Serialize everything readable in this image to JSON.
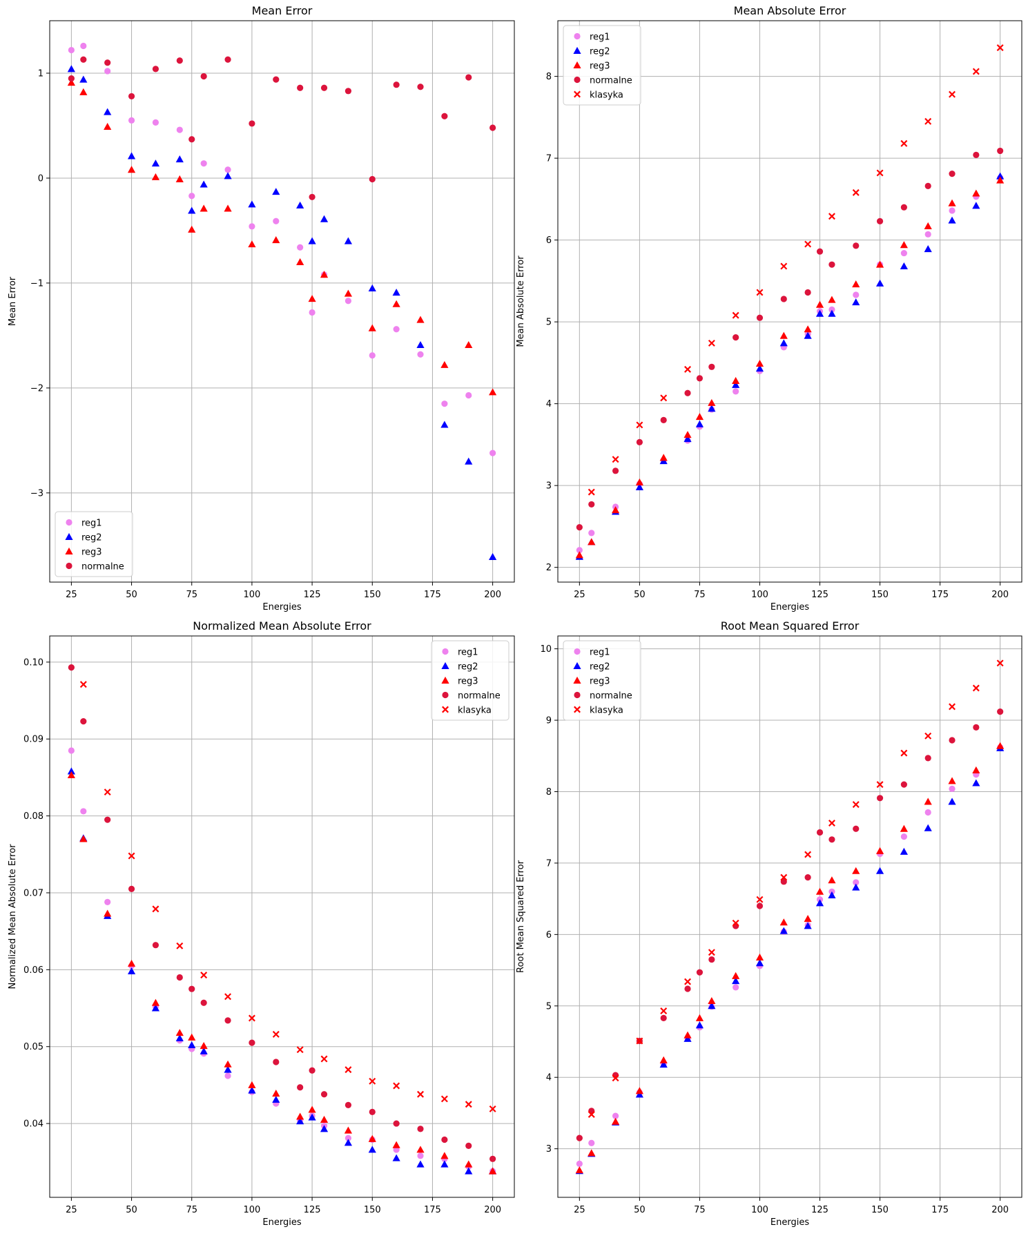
{
  "figure": {
    "title": ""
  },
  "colors": {
    "reg1": "#ee82ee",
    "reg2": "#0000ff",
    "reg3": "#ff0000",
    "normalne": "#dc143c",
    "klasyka": "#ff0000",
    "grid": "#b0b0b0"
  },
  "chart_data": [
    {
      "type": "scatter",
      "title": "Mean Error",
      "xlabel": "Energies",
      "ylabel": "Mean Error",
      "xlim": [
        16,
        209
      ],
      "ylim": [
        -3.85,
        1.5
      ],
      "xticks": [
        25,
        50,
        75,
        100,
        125,
        150,
        175,
        200
      ],
      "yticks": [
        -3,
        -2,
        -1,
        0,
        1
      ],
      "yticklabels": [
        "−3",
        "−2",
        "−1",
        "0",
        "1"
      ],
      "grid": true,
      "legend": "lower-left",
      "x": [
        25,
        30,
        40,
        50,
        60,
        70,
        75,
        80,
        90,
        100,
        110,
        120,
        125,
        130,
        140,
        150,
        160,
        170,
        180,
        190,
        200
      ],
      "series": [
        {
          "name": "reg1",
          "marker": "circle",
          "color": "#ee82ee",
          "values": [
            1.22,
            1.26,
            1.02,
            0.55,
            0.53,
            0.46,
            -0.17,
            0.14,
            0.08,
            -0.46,
            -0.41,
            -0.66,
            -1.28,
            -0.92,
            -1.17,
            -1.69,
            -1.44,
            -1.68,
            -2.15,
            -2.07,
            -2.62
          ]
        },
        {
          "name": "reg2",
          "marker": "triangle",
          "color": "#0000ff",
          "values": [
            1.04,
            0.94,
            0.63,
            0.21,
            0.14,
            0.18,
            -0.31,
            -0.06,
            0.02,
            -0.25,
            -0.13,
            -0.26,
            -0.6,
            -0.39,
            -0.6,
            -1.05,
            -1.09,
            -1.59,
            -2.35,
            -2.7,
            -3.61
          ]
        },
        {
          "name": "reg3",
          "marker": "triangle",
          "color": "#ff0000",
          "values": [
            0.91,
            0.82,
            0.49,
            0.08,
            0.01,
            -0.01,
            -0.49,
            -0.29,
            -0.29,
            -0.63,
            -0.59,
            -0.8,
            -1.15,
            -0.92,
            -1.1,
            -1.43,
            -1.2,
            -1.35,
            -1.78,
            -1.59,
            -2.04
          ]
        },
        {
          "name": "normalne",
          "marker": "circle",
          "color": "#dc143c",
          "values": [
            0.95,
            1.13,
            1.1,
            0.78,
            1.04,
            1.12,
            0.37,
            0.97,
            1.13,
            0.52,
            0.94,
            0.86,
            -0.18,
            0.86,
            0.83,
            -0.01,
            0.89,
            0.87,
            0.59,
            0.96,
            0.48
          ]
        }
      ]
    },
    {
      "type": "scatter",
      "title": "Mean Absolute Error",
      "xlabel": "Energies",
      "ylabel": "Mean Absolute Error",
      "xlim": [
        16,
        209
      ],
      "ylim": [
        1.82,
        8.68
      ],
      "xticks": [
        25,
        50,
        75,
        100,
        125,
        150,
        175,
        200
      ],
      "yticks": [
        2,
        3,
        4,
        5,
        6,
        7,
        8
      ],
      "yticklabels": [
        "2",
        "3",
        "4",
        "5",
        "6",
        "7",
        "8"
      ],
      "grid": true,
      "legend": "top-left",
      "x": [
        25,
        30,
        40,
        50,
        60,
        70,
        75,
        80,
        90,
        100,
        110,
        120,
        125,
        130,
        140,
        150,
        160,
        170,
        180,
        190,
        200
      ],
      "series": [
        {
          "name": "reg1",
          "marker": "circle",
          "color": "#ee82ee",
          "values": [
            2.21,
            2.42,
            2.74,
            3.02,
            3.31,
            3.55,
            3.72,
            3.93,
            4.15,
            4.4,
            4.69,
            4.85,
            5.13,
            5.15,
            5.33,
            5.7,
            5.84,
            6.07,
            6.36,
            6.53,
            6.76
          ]
        },
        {
          "name": "reg2",
          "marker": "triangle",
          "color": "#0000ff",
          "values": [
            2.13,
            2.31,
            2.68,
            2.98,
            3.3,
            3.57,
            3.75,
            3.94,
            4.23,
            4.43,
            4.74,
            4.83,
            5.1,
            5.1,
            5.24,
            5.47,
            5.68,
            5.89,
            6.24,
            6.42,
            6.78
          ]
        },
        {
          "name": "reg3",
          "marker": "triangle",
          "color": "#ff0000",
          "values": [
            2.15,
            2.31,
            2.7,
            3.04,
            3.34,
            3.62,
            3.84,
            4.01,
            4.28,
            4.49,
            4.83,
            4.91,
            5.21,
            5.27,
            5.46,
            5.7,
            5.94,
            6.17,
            6.45,
            6.57,
            6.73
          ]
        },
        {
          "name": "normalne",
          "marker": "circle",
          "color": "#dc143c",
          "values": [
            2.49,
            2.77,
            3.18,
            3.53,
            3.8,
            4.13,
            4.31,
            4.45,
            4.81,
            5.05,
            5.28,
            5.36,
            5.86,
            5.7,
            5.93,
            6.23,
            6.4,
            6.66,
            6.81,
            7.04,
            7.09
          ]
        },
        {
          "name": "klasyka",
          "marker": "x",
          "color": "#ff0000",
          "values": [
            null,
            2.92,
            3.32,
            3.74,
            4.07,
            4.42,
            null,
            4.74,
            5.08,
            5.36,
            5.68,
            5.95,
            null,
            6.29,
            6.58,
            6.82,
            7.18,
            7.45,
            7.78,
            8.06,
            8.35
          ]
        }
      ]
    },
    {
      "type": "scatter",
      "title": "Normalized Mean Absolute Error",
      "xlabel": "Energies",
      "ylabel": "Normalized Mean Absolute Error",
      "xlim": [
        16,
        209
      ],
      "ylim": [
        0.0304,
        0.1034
      ],
      "xticks": [
        25,
        50,
        75,
        100,
        125,
        150,
        175,
        200
      ],
      "yticks": [
        0.04,
        0.05,
        0.06,
        0.07,
        0.08,
        0.09,
        0.1
      ],
      "yticklabels": [
        "0.04",
        "0.05",
        "0.06",
        "0.07",
        "0.08",
        "0.09",
        "0.10"
      ],
      "grid": true,
      "legend": "top-right",
      "x": [
        25,
        30,
        40,
        50,
        60,
        70,
        75,
        80,
        90,
        100,
        110,
        120,
        125,
        130,
        140,
        150,
        160,
        170,
        180,
        190,
        200
      ],
      "series": [
        {
          "name": "reg1",
          "marker": "circle",
          "color": "#ee82ee",
          "values": [
            0.0885,
            0.0806,
            0.0688,
            0.0605,
            0.0552,
            0.0508,
            0.0497,
            0.0491,
            0.0462,
            0.0441,
            0.0426,
            0.0404,
            0.041,
            0.0397,
            0.0381,
            0.0379,
            0.0366,
            0.0358,
            0.0354,
            0.0344,
            0.0338
          ]
        },
        {
          "name": "reg2",
          "marker": "triangle",
          "color": "#0000ff",
          "values": [
            0.0858,
            0.0771,
            0.067,
            0.0598,
            0.055,
            0.0511,
            0.0502,
            0.0494,
            0.047,
            0.0443,
            0.0431,
            0.0403,
            0.0408,
            0.0393,
            0.0375,
            0.0366,
            0.0355,
            0.0347,
            0.0347,
            0.0338,
            0.0338
          ]
        },
        {
          "name": "reg3",
          "marker": "triangle",
          "color": "#ff0000",
          "values": [
            0.0853,
            0.077,
            0.0673,
            0.0608,
            0.0557,
            0.0518,
            0.0512,
            0.0501,
            0.0477,
            0.045,
            0.0439,
            0.0409,
            0.0418,
            0.0405,
            0.0391,
            0.038,
            0.0372,
            0.0366,
            0.0358,
            0.0347,
            0.0338
          ]
        },
        {
          "name": "normalne",
          "marker": "circle",
          "color": "#dc143c",
          "values": [
            0.0993,
            0.0923,
            0.0795,
            0.0705,
            0.0632,
            0.059,
            0.0575,
            0.0557,
            0.0534,
            0.0505,
            0.048,
            0.0447,
            0.0469,
            0.0438,
            0.0424,
            0.0415,
            0.04,
            0.0393,
            0.0379,
            0.0371,
            0.0354
          ]
        },
        {
          "name": "klasyka",
          "marker": "x",
          "color": "#ff0000",
          "values": [
            null,
            0.0971,
            0.0831,
            0.0748,
            0.0679,
            0.0631,
            null,
            0.0593,
            0.0565,
            0.0537,
            0.0516,
            0.0496,
            null,
            0.0484,
            0.047,
            0.0455,
            0.0449,
            0.0438,
            0.0432,
            0.0425,
            0.0419
          ]
        }
      ]
    },
    {
      "type": "scatter",
      "title": "Root Mean Squared Error",
      "xlabel": "Energies",
      "ylabel": "Root Mean Squared Error",
      "xlim": [
        16,
        209
      ],
      "ylim": [
        2.32,
        10.18
      ],
      "xticks": [
        25,
        50,
        75,
        100,
        125,
        150,
        175,
        200
      ],
      "yticks": [
        3,
        4,
        5,
        6,
        7,
        8,
        9,
        10
      ],
      "yticklabels": [
        "3",
        "4",
        "5",
        "6",
        "7",
        "8",
        "9",
        "10"
      ],
      "grid": true,
      "legend": "top-left",
      "x": [
        25,
        30,
        40,
        50,
        60,
        70,
        75,
        80,
        90,
        100,
        110,
        120,
        125,
        130,
        140,
        150,
        160,
        170,
        180,
        190,
        200
      ],
      "series": [
        {
          "name": "reg1",
          "marker": "circle",
          "color": "#ee82ee",
          "values": [
            2.79,
            3.08,
            3.46,
            3.79,
            4.19,
            4.55,
            4.7,
            4.99,
            5.26,
            5.56,
            6.04,
            6.13,
            6.49,
            6.6,
            6.73,
            7.13,
            7.37,
            7.71,
            8.04,
            8.24,
            8.62
          ]
        },
        {
          "name": "reg2",
          "marker": "triangle",
          "color": "#0000ff",
          "values": [
            2.69,
            2.93,
            3.37,
            3.76,
            4.18,
            4.54,
            4.73,
            5.0,
            5.35,
            5.6,
            6.05,
            6.12,
            6.44,
            6.55,
            6.66,
            6.89,
            7.16,
            7.49,
            7.86,
            8.12,
            8.61
          ]
        },
        {
          "name": "reg3",
          "marker": "triangle",
          "color": "#ff0000",
          "values": [
            2.7,
            2.94,
            3.38,
            3.81,
            4.24,
            4.59,
            4.83,
            5.07,
            5.42,
            5.68,
            6.17,
            6.22,
            6.6,
            6.76,
            6.89,
            7.17,
            7.48,
            7.86,
            8.15,
            8.3,
            8.64
          ]
        },
        {
          "name": "normalne",
          "marker": "circle",
          "color": "#dc143c",
          "values": [
            3.15,
            3.53,
            4.03,
            4.51,
            4.83,
            5.24,
            5.47,
            5.65,
            6.12,
            6.4,
            6.74,
            6.8,
            7.43,
            7.33,
            7.48,
            7.91,
            8.1,
            8.47,
            8.72,
            8.9,
            9.12
          ]
        },
        {
          "name": "klasyka",
          "marker": "x",
          "color": "#ff0000",
          "values": [
            null,
            3.48,
            3.99,
            4.51,
            4.93,
            5.34,
            null,
            5.75,
            6.16,
            6.49,
            6.8,
            7.12,
            null,
            7.56,
            7.82,
            8.1,
            8.54,
            8.78,
            9.19,
            9.45,
            9.8
          ]
        }
      ]
    }
  ]
}
